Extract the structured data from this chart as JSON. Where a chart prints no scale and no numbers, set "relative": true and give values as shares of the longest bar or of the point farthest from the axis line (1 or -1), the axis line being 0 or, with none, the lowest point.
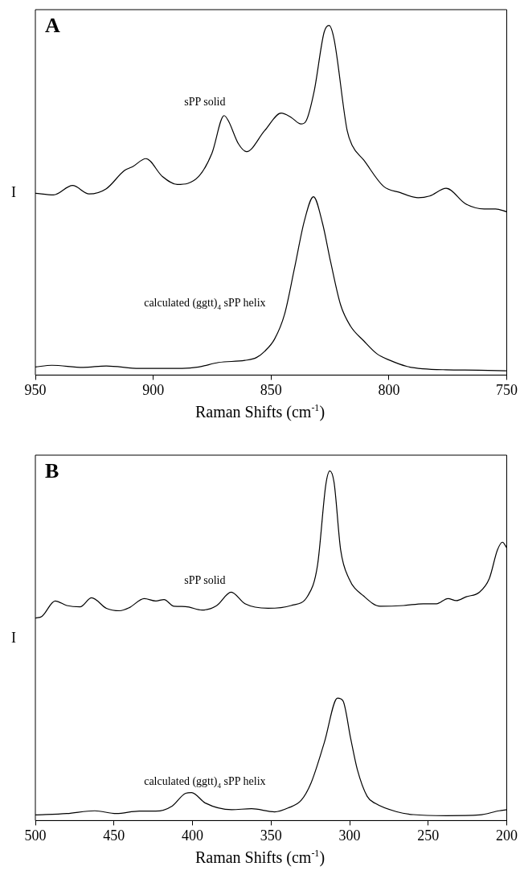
{
  "chart_data": [
    {
      "type": "line",
      "title": "A",
      "xlabel": "Raman Shifts (cm$^{-1}$)",
      "ylabel": "I",
      "relative": true,
      "xlim": [
        950,
        750
      ],
      "xticks": [
        950,
        900,
        850,
        800,
        750
      ],
      "series": [
        {
          "name": "sPP solid",
          "color": "#000000",
          "x": [
            950,
            942.3,
            934.2,
            927.2,
            919.9,
            912.2,
            908.7,
            903.1,
            896.1,
            889.8,
            880.7,
            875.1,
            869.9,
            868.1,
            863.9,
            860.4,
            852.7,
            845.7,
            841.5,
            837.3,
            835.2,
            831.7,
            827.5,
            825.4,
            823.3,
            817.7,
            815.6,
            810.7,
            802.3,
            795.3,
            787.6,
            782.7,
            775.7,
            767.3,
            759.6,
            754.7,
            750
          ],
          "values": [
            0.52,
            0.515,
            0.542,
            0.518,
            0.533,
            0.585,
            0.596,
            0.619,
            0.568,
            0.545,
            0.568,
            0.634,
            0.742,
            0.727,
            0.662,
            0.639,
            0.699,
            0.749,
            0.737,
            0.718,
            0.726,
            0.812,
            0.98,
            1.0,
            0.962,
            0.699,
            0.657,
            0.615,
            0.54,
            0.522,
            0.507,
            0.512,
            0.534,
            0.489,
            0.475,
            0.475,
            0.467
          ]
        },
        {
          "name": "calculated (ggtt)$_{4}$ sPP helix",
          "color": "#000000",
          "x": [
            950,
            943,
            929.7,
            919.9,
            905.9,
            887.7,
            880.7,
            872.3,
            861.1,
            856.2,
            852.7,
            848.5,
            844.3,
            840.1,
            835.9,
            832.0,
            828.2,
            824.7,
            820.5,
            816.3,
            810.7,
            805.1,
            799.5,
            792.5,
            785.5,
            775.7,
            761.7,
            750.2
          ],
          "values": [
            0.023,
            0.028,
            0.022,
            0.026,
            0.019,
            0.019,
            0.023,
            0.036,
            0.042,
            0.05,
            0.068,
            0.103,
            0.173,
            0.304,
            0.44,
            0.51,
            0.435,
            0.323,
            0.201,
            0.14,
            0.098,
            0.061,
            0.042,
            0.025,
            0.018,
            0.015,
            0.014,
            0.012
          ]
        }
      ]
    },
    {
      "type": "line",
      "title": "B",
      "xlabel": "Raman Shifts (cm$^{-1}$)",
      "ylabel": "I",
      "relative": true,
      "xlim": [
        500,
        200
      ],
      "xticks": [
        500,
        450,
        400,
        350,
        300,
        250,
        200
      ],
      "series": [
        {
          "name": "sPP solid",
          "color": "#000000",
          "x": [
            500,
            495.8,
            487.4,
            480.0,
            471.6,
            464.2,
            454.8,
            446.4,
            440.1,
            430.7,
            423.3,
            418.1,
            411.8,
            404.4,
            393.9,
            384.5,
            375.4,
            366.6,
            351.9,
            337.2,
            326.7,
            320.4,
            315.1,
            312.6,
            309.9,
            305.7,
            300.4,
            291.0,
            280.5,
            265.7,
            253.1,
            244.7,
            237.4,
            232.1,
            225.8,
            217.4,
            211.1,
            205.9,
            202.7,
            200
          ],
          "values": [
            0.579,
            0.584,
            0.628,
            0.615,
            0.611,
            0.637,
            0.607,
            0.6,
            0.609,
            0.635,
            0.628,
            0.632,
            0.613,
            0.612,
            0.602,
            0.615,
            0.653,
            0.62,
            0.607,
            0.615,
            0.642,
            0.731,
            0.962,
            1.0,
            0.967,
            0.774,
            0.692,
            0.642,
            0.613,
            0.615,
            0.62,
            0.62,
            0.635,
            0.629,
            0.64,
            0.653,
            0.692,
            0.774,
            0.796,
            0.78
          ]
        },
        {
          "name": "calculated (ggtt)$_{4}$ sPP helix",
          "color": "#000000",
          "x": [
            500,
            480,
            462.2,
            448.5,
            433.8,
            423.3,
            412.8,
            404.4,
            400.6,
            391.8,
            375.0,
            362.4,
            347.7,
            339.2,
            330.8,
            324.5,
            316.1,
            307.7,
            304.2,
            299.3,
            295.1,
            288.8,
            283.6,
            269.9,
            259.4,
            238.4,
            217.4,
            204.8,
            200
          ],
          "values": [
            0.016,
            0.02,
            0.028,
            0.02,
            0.027,
            0.027,
            0.042,
            0.078,
            0.08,
            0.05,
            0.031,
            0.034,
            0.025,
            0.036,
            0.058,
            0.108,
            0.223,
            0.35,
            0.342,
            0.234,
            0.146,
            0.069,
            0.049,
            0.025,
            0.017,
            0.014,
            0.016,
            0.028,
            0.031
          ]
        }
      ]
    }
  ]
}
